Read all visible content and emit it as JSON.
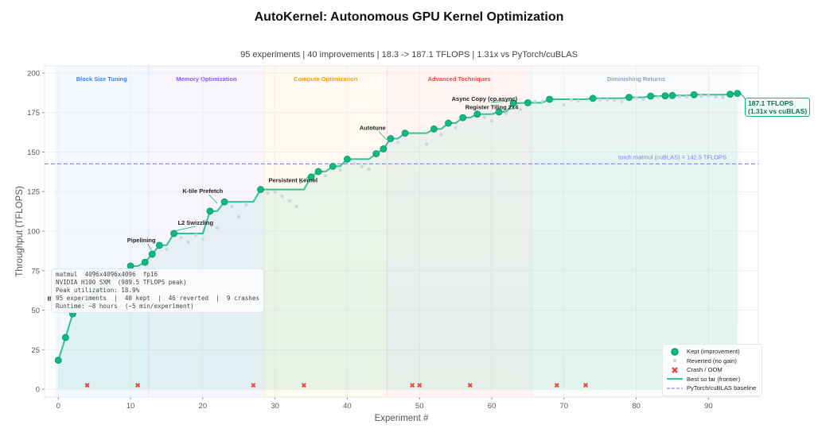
{
  "chart_data": {
    "type": "scatter",
    "title": "AutoKernel: Autonomous GPU Kernel Optimization",
    "subtitle": "95 experiments  |  40 improvements  |  18.3 -> 187.1 TFLOPS  |  1.31x vs PyTorch/cuBLAS",
    "xlabel": "Experiment #",
    "ylabel": "Throughput (TFLOPS)",
    "xlim": [
      -1.9,
      96.9
    ],
    "ylim": [
      -5,
      204.5
    ],
    "xticks": [
      0,
      10,
      20,
      30,
      40,
      50,
      60,
      70,
      80,
      90
    ],
    "yticks": [
      0,
      25,
      50,
      75,
      100,
      125,
      150,
      175,
      200
    ],
    "grid": true,
    "legend_position": "bottom-right",
    "colors": {
      "kept": "#10b981",
      "reverted": "#cbd5e1",
      "crash": "#ef4444",
      "frontier": "#34c38f",
      "baseline": "#8b8cf0"
    },
    "kept": {
      "x": [
        0,
        1,
        2,
        3,
        5,
        6,
        7,
        8,
        10,
        12,
        13,
        14,
        16,
        21,
        23,
        28,
        35,
        36,
        38,
        40,
        44,
        45,
        46,
        48,
        52,
        54,
        56,
        58,
        61,
        63,
        65,
        68,
        74,
        79,
        82,
        84,
        85,
        88,
        93,
        94
      ],
      "y": [
        18.3,
        32.7,
        47.7,
        54.1,
        59.8,
        63.5,
        67.2,
        71,
        77.9,
        80.3,
        85.4,
        91,
        98.5,
        112.6,
        118.5,
        126.3,
        134.2,
        137.7,
        141,
        145.5,
        149,
        152,
        158.5,
        162,
        164.6,
        168.3,
        171.8,
        174,
        175.4,
        181,
        181.2,
        183.4,
        184,
        184.6,
        185.4,
        185.6,
        185.8,
        186.3,
        186.6,
        187.1
      ]
    },
    "reverted": {
      "x": [
        9,
        15,
        17,
        18,
        19,
        20,
        22,
        24,
        25,
        26,
        29,
        30,
        31,
        32,
        33,
        37,
        39,
        41,
        42,
        43,
        47,
        51,
        53,
        55,
        59,
        60,
        62,
        64,
        66,
        67,
        70,
        71,
        72,
        75,
        76,
        77,
        78,
        80,
        81,
        83,
        86,
        87,
        89,
        90,
        91,
        92
      ],
      "y": [
        70,
        88.4,
        96,
        93,
        97.5,
        95,
        102,
        115.6,
        109,
        116.6,
        124,
        124.6,
        122,
        119,
        115.6,
        135,
        138.7,
        142.7,
        140.7,
        139.2,
        156.3,
        155,
        161,
        165.5,
        171.9,
        169.8,
        174.5,
        177,
        182,
        182,
        180,
        183,
        182.4,
        183,
        183,
        182.6,
        182,
        184,
        183.4,
        184.6,
        185,
        185,
        185.5,
        185.6,
        185,
        184.6
      ]
    },
    "crashes": {
      "x": [
        4,
        11,
        27,
        34,
        49,
        50,
        57,
        69,
        73
      ],
      "y": [
        2.5,
        2.5,
        2.5,
        2.5,
        2.5,
        2.5,
        2.5,
        2.5,
        2.5
      ]
    },
    "baseline": {
      "value": 142.5,
      "label": "torch.matmul (cuBLAS) = 142.5 TFLOPS"
    },
    "phases": [
      {
        "name": "Block Size Tuning",
        "start": -0.5,
        "end": 12.5,
        "color": "#3b82f6"
      },
      {
        "name": "Memory Optimization",
        "start": 12.5,
        "end": 28.5,
        "color": "#8b5cf6"
      },
      {
        "name": "Compute Optimization",
        "start": 28.5,
        "end": 45.5,
        "color": "#f59e0b"
      },
      {
        "name": "Advanced Techniques",
        "start": 45.5,
        "end": 65.5,
        "color": "#ef4444"
      },
      {
        "name": "Diminishing Returns",
        "start": 65.5,
        "end": 94.5,
        "color": "#94a3b8"
      }
    ],
    "annotations": [
      {
        "text": "B",
        "x": 2,
        "y": 47.7,
        "tx": -1.2,
        "ty": 56
      },
      {
        "text": "Pipelining",
        "x": 13,
        "y": 85.4,
        "tx": 11.5,
        "ty": 93
      },
      {
        "text": "L2 Swizzling",
        "x": 16,
        "y": 98.5,
        "tx": 19,
        "ty": 104
      },
      {
        "text": "K-tile Prefetch",
        "x": 22,
        "y": 116,
        "tx": 20,
        "ty": 124
      },
      {
        "text": "Persistent Kernel",
        "x": 35,
        "y": 134.2,
        "tx": 32.5,
        "ty": 131
      },
      {
        "text": "Autotune",
        "x": 45.5,
        "y": 156,
        "tx": 43.5,
        "ty": 164
      },
      {
        "text": "Register Tiling 2x4",
        "x": 61,
        "y": 175.4,
        "tx": 60,
        "ty": 177
      },
      {
        "text": "Async Copy (cp.async)",
        "x": 63,
        "y": 181,
        "tx": 59,
        "ty": 182.5
      }
    ],
    "final_label": [
      "187.1 TFLOPS",
      "(1.31x vs cuBLAS)"
    ],
    "info_box": [
      "matmul  4096x4096x4096  fp16",
      "NVIDIA H100 SXM  (989.5 TFLOPS peak)",
      "Peak utilization: 18.9%",
      "95 experiments  |  40 kept  |  46 reverted  |  9 crashes",
      "Runtime: ~8 hours  (~5 min/experiment)"
    ],
    "legend": [
      "Kept (improvement)",
      "Reverted (no gain)",
      "Crash / OOM",
      "Best so far (frontier)",
      "PyTorch/cuBLAS baseline"
    ]
  }
}
